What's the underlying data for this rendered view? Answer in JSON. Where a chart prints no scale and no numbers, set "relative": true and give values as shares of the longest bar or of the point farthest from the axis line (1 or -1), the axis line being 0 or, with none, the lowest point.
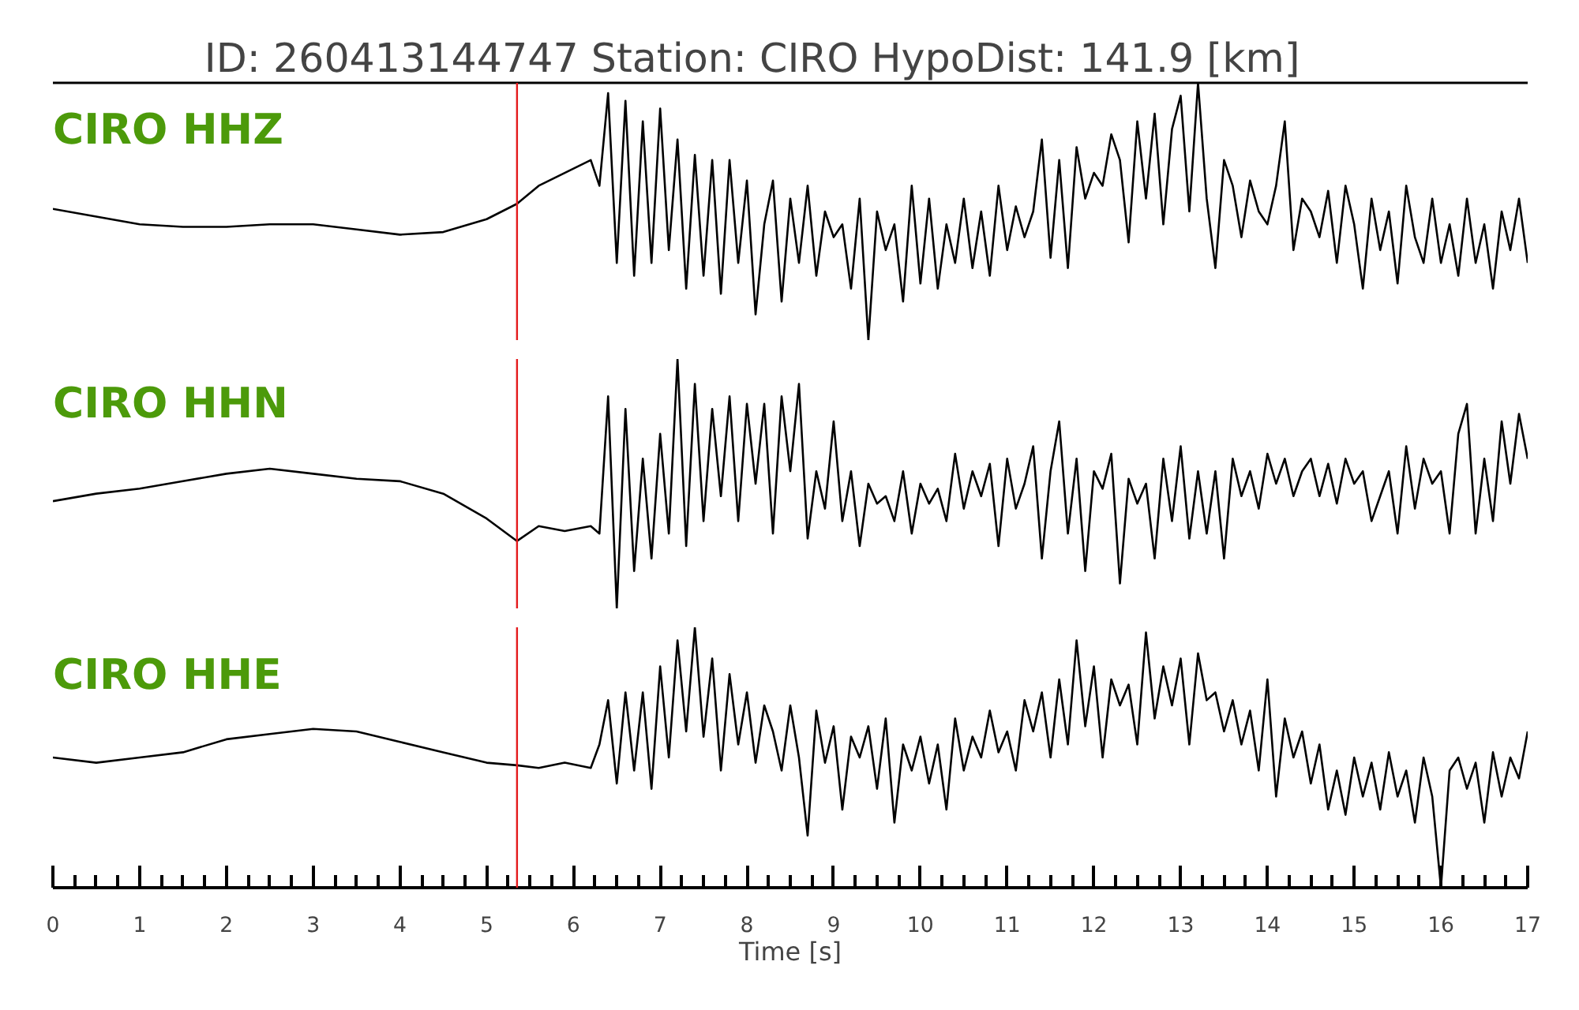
{
  "chart_data": [
    {
      "type": "line",
      "title": "ID: 260413144747   Station: CIRO   HypoDist:   141.9 [km]",
      "relative": true,
      "xlim": [
        0,
        17
      ],
      "tick_labels": false,
      "x": [
        0,
        0.5,
        1,
        1.5,
        2,
        2.5,
        3,
        3.5,
        4,
        4.5,
        5,
        5.35,
        5.6,
        5.9,
        6.2,
        6.3,
        6.4,
        6.5,
        6.6,
        6.7,
        6.8,
        6.9,
        7.0,
        7.1,
        7.2,
        7.3,
        7.4,
        7.5,
        7.6,
        7.7,
        7.8,
        7.9,
        8.0,
        8.1,
        8.2,
        8.3,
        8.4,
        8.5,
        8.6,
        8.7,
        8.8,
        8.9,
        9.0,
        9.1,
        9.2,
        9.3,
        9.4,
        9.5,
        9.6,
        9.7,
        9.8,
        9.9,
        10.0,
        10.1,
        10.2,
        10.3,
        10.4,
        10.5,
        10.6,
        10.7,
        10.8,
        10.9,
        11.0,
        11.1,
        11.2,
        11.3,
        11.4,
        11.5,
        11.6,
        11.7,
        11.8,
        11.9,
        12.0,
        12.1,
        12.2,
        12.3,
        12.4,
        12.5,
        12.6,
        12.7,
        12.8,
        12.9,
        13.0,
        13.1,
        13.2,
        13.3,
        13.4,
        13.5,
        13.6,
        13.7,
        13.8,
        13.9,
        14.0,
        14.1,
        14.2,
        14.3,
        14.4,
        14.5,
        14.6,
        14.7,
        14.8,
        14.9,
        15.0,
        15.1,
        15.2,
        15.3,
        15.4,
        15.5,
        15.6,
        15.7,
        15.8,
        15.9,
        16.0,
        16.1,
        16.2,
        16.3,
        16.4,
        16.5,
        16.6,
        16.7,
        16.8,
        16.9,
        17.0
      ],
      "ref_lines": [
        {
          "axis": "x",
          "value": 5.35,
          "color": "#e41a1c"
        }
      ],
      "series": [
        {
          "name": "CIRO HHZ",
          "color": "#000000",
          "values": [
            0.51,
            0.48,
            0.45,
            0.44,
            0.44,
            0.45,
            0.45,
            0.43,
            0.41,
            0.42,
            0.47,
            0.53,
            0.6,
            0.65,
            0.7,
            0.6,
            0.96,
            0.3,
            0.93,
            0.25,
            0.85,
            0.3,
            0.9,
            0.35,
            0.78,
            0.2,
            0.72,
            0.25,
            0.7,
            0.18,
            0.7,
            0.3,
            0.62,
            0.1,
            0.45,
            0.62,
            0.15,
            0.55,
            0.3,
            0.6,
            0.25,
            0.5,
            0.4,
            0.45,
            0.2,
            0.55,
            0.0,
            0.5,
            0.35,
            0.45,
            0.15,
            0.6,
            0.22,
            0.55,
            0.2,
            0.45,
            0.3,
            0.55,
            0.28,
            0.5,
            0.25,
            0.6,
            0.35,
            0.52,
            0.4,
            0.5,
            0.78,
            0.32,
            0.7,
            0.28,
            0.75,
            0.55,
            0.65,
            0.6,
            0.8,
            0.7,
            0.38,
            0.85,
            0.55,
            0.88,
            0.45,
            0.82,
            0.95,
            0.5,
            1.0,
            0.55,
            0.28,
            0.7,
            0.6,
            0.4,
            0.62,
            0.5,
            0.45,
            0.6,
            0.85,
            0.35,
            0.55,
            0.5,
            0.4,
            0.58,
            0.3,
            0.6,
            0.45,
            0.2,
            0.55,
            0.35,
            0.5,
            0.22,
            0.6,
            0.4,
            0.3,
            0.55,
            0.3,
            0.45,
            0.25,
            0.55,
            0.3,
            0.45,
            0.2,
            0.5,
            0.35,
            0.55,
            0.3
          ]
        }
      ]
    },
    {
      "type": "line",
      "relative": true,
      "xlim": [
        0,
        17
      ],
      "tick_labels": false,
      "x": [
        0,
        0.5,
        1,
        1.5,
        2,
        2.5,
        3,
        3.5,
        4,
        4.5,
        5,
        5.35,
        5.6,
        5.9,
        6.2,
        6.3,
        6.4,
        6.5,
        6.6,
        6.7,
        6.8,
        6.9,
        7.0,
        7.1,
        7.2,
        7.3,
        7.4,
        7.5,
        7.6,
        7.7,
        7.8,
        7.9,
        8.0,
        8.1,
        8.2,
        8.3,
        8.4,
        8.5,
        8.6,
        8.7,
        8.8,
        8.9,
        9.0,
        9.1,
        9.2,
        9.3,
        9.4,
        9.5,
        9.6,
        9.7,
        9.8,
        9.9,
        10.0,
        10.1,
        10.2,
        10.3,
        10.4,
        10.5,
        10.6,
        10.7,
        10.8,
        10.9,
        11.0,
        11.1,
        11.2,
        11.3,
        11.4,
        11.5,
        11.6,
        11.7,
        11.8,
        11.9,
        12.0,
        12.1,
        12.2,
        12.3,
        12.4,
        12.5,
        12.6,
        12.7,
        12.8,
        12.9,
        13.0,
        13.1,
        13.2,
        13.3,
        13.4,
        13.5,
        13.6,
        13.7,
        13.8,
        13.9,
        14.0,
        14.1,
        14.2,
        14.3,
        14.4,
        14.5,
        14.6,
        14.7,
        14.8,
        14.9,
        15.0,
        15.1,
        15.2,
        15.3,
        15.4,
        15.5,
        15.6,
        15.7,
        15.8,
        15.9,
        16.0,
        16.1,
        16.2,
        16.3,
        16.4,
        16.5,
        16.6,
        16.7,
        16.8,
        16.9,
        17.0
      ],
      "ref_lines": [
        {
          "axis": "x",
          "value": 5.35,
          "color": "#e41a1c"
        }
      ],
      "series": [
        {
          "name": "CIRO HHN",
          "color": "#000000",
          "values": [
            0.43,
            0.46,
            0.48,
            0.51,
            0.54,
            0.56,
            0.54,
            0.52,
            0.51,
            0.46,
            0.36,
            0.27,
            0.33,
            0.31,
            0.33,
            0.3,
            0.85,
            0.0,
            0.8,
            0.15,
            0.6,
            0.2,
            0.7,
            0.3,
            1.0,
            0.25,
            0.9,
            0.35,
            0.8,
            0.45,
            0.85,
            0.35,
            0.82,
            0.5,
            0.82,
            0.3,
            0.85,
            0.55,
            0.9,
            0.28,
            0.55,
            0.4,
            0.75,
            0.35,
            0.55,
            0.25,
            0.5,
            0.42,
            0.45,
            0.35,
            0.55,
            0.3,
            0.5,
            0.42,
            0.48,
            0.35,
            0.62,
            0.4,
            0.55,
            0.45,
            0.58,
            0.25,
            0.6,
            0.4,
            0.5,
            0.65,
            0.2,
            0.55,
            0.75,
            0.3,
            0.6,
            0.15,
            0.55,
            0.48,
            0.62,
            0.1,
            0.52,
            0.42,
            0.5,
            0.2,
            0.6,
            0.35,
            0.65,
            0.28,
            0.55,
            0.3,
            0.55,
            0.2,
            0.6,
            0.45,
            0.55,
            0.4,
            0.62,
            0.5,
            0.6,
            0.45,
            0.55,
            0.6,
            0.45,
            0.58,
            0.42,
            0.6,
            0.5,
            0.55,
            0.35,
            0.45,
            0.55,
            0.3,
            0.65,
            0.4,
            0.6,
            0.5,
            0.55,
            0.3,
            0.7,
            0.82,
            0.3,
            0.6,
            0.35,
            0.75,
            0.5,
            0.78,
            0.6
          ]
        }
      ]
    },
    {
      "type": "line",
      "relative": true,
      "xlim": [
        0,
        17
      ],
      "xlabel": "Time [s]",
      "xticks": [
        0,
        {
          "value": 0.25,
          "label": null
        },
        {
          "value": 0.5,
          "label": null
        },
        {
          "value": 0.75,
          "label": null
        },
        1,
        {
          "value": 1.25,
          "label": null
        },
        {
          "value": 1.5,
          "label": null
        },
        {
          "value": 1.75,
          "label": null
        },
        2,
        {
          "value": 2.25,
          "label": null
        },
        {
          "value": 2.5,
          "label": null
        },
        {
          "value": 2.75,
          "label": null
        },
        3,
        {
          "value": 3.25,
          "label": null
        },
        {
          "value": 3.5,
          "label": null
        },
        {
          "value": 3.75,
          "label": null
        },
        4,
        {
          "value": 4.25,
          "label": null
        },
        {
          "value": 4.5,
          "label": null
        },
        {
          "value": 4.75,
          "label": null
        },
        5,
        {
          "value": 5.25,
          "label": null
        },
        {
          "value": 5.5,
          "label": null
        },
        {
          "value": 5.75,
          "label": null
        },
        6,
        {
          "value": 6.25,
          "label": null
        },
        {
          "value": 6.5,
          "label": null
        },
        {
          "value": 6.75,
          "label": null
        },
        7,
        {
          "value": 7.25,
          "label": null
        },
        {
          "value": 7.5,
          "label": null
        },
        {
          "value": 7.75,
          "label": null
        },
        8,
        {
          "value": 8.25,
          "label": null
        },
        {
          "value": 8.5,
          "label": null
        },
        {
          "value": 8.75,
          "label": null
        },
        9,
        {
          "value": 9.25,
          "label": null
        },
        {
          "value": 9.5,
          "label": null
        },
        {
          "value": 9.75,
          "label": null
        },
        10,
        {
          "value": 10.25,
          "label": null
        },
        {
          "value": 10.5,
          "label": null
        },
        {
          "value": 10.75,
          "label": null
        },
        11,
        {
          "value": 11.25,
          "label": null
        },
        {
          "value": 11.5,
          "label": null
        },
        {
          "value": 11.75,
          "label": null
        },
        12,
        {
          "value": 12.25,
          "label": null
        },
        {
          "value": 12.5,
          "label": null
        },
        {
          "value": 12.75,
          "label": null
        },
        13,
        {
          "value": 13.25,
          "label": null
        },
        {
          "value": 13.5,
          "label": null
        },
        {
          "value": 13.75,
          "label": null
        },
        14,
        {
          "value": 14.25,
          "label": null
        },
        {
          "value": 14.5,
          "label": null
        },
        {
          "value": 14.75,
          "label": null
        },
        15,
        {
          "value": 15.25,
          "label": null
        },
        {
          "value": 15.5,
          "label": null
        },
        {
          "value": 15.75,
          "label": null
        },
        16,
        {
          "value": 16.25,
          "label": null
        },
        {
          "value": 16.5,
          "label": null
        },
        {
          "value": 16.75,
          "label": null
        },
        17
      ],
      "x": [
        0,
        0.5,
        1,
        1.5,
        2,
        2.5,
        3,
        3.5,
        4,
        4.5,
        5,
        5.35,
        5.6,
        5.9,
        6.2,
        6.3,
        6.4,
        6.5,
        6.6,
        6.7,
        6.8,
        6.9,
        7.0,
        7.1,
        7.2,
        7.3,
        7.4,
        7.5,
        7.6,
        7.7,
        7.8,
        7.9,
        8.0,
        8.1,
        8.2,
        8.3,
        8.4,
        8.5,
        8.6,
        8.7,
        8.8,
        8.9,
        9.0,
        9.1,
        9.2,
        9.3,
        9.4,
        9.5,
        9.6,
        9.7,
        9.8,
        9.9,
        10.0,
        10.1,
        10.2,
        10.3,
        10.4,
        10.5,
        10.6,
        10.7,
        10.8,
        10.9,
        11.0,
        11.1,
        11.2,
        11.3,
        11.4,
        11.5,
        11.6,
        11.7,
        11.8,
        11.9,
        12.0,
        12.1,
        12.2,
        12.3,
        12.4,
        12.5,
        12.6,
        12.7,
        12.8,
        12.9,
        13.0,
        13.1,
        13.2,
        13.3,
        13.4,
        13.5,
        13.6,
        13.7,
        13.8,
        13.9,
        14.0,
        14.1,
        14.2,
        14.3,
        14.4,
        14.5,
        14.6,
        14.7,
        14.8,
        14.9,
        15.0,
        15.1,
        15.2,
        15.3,
        15.4,
        15.5,
        15.6,
        15.7,
        15.8,
        15.9,
        16.0,
        16.1,
        16.2,
        16.3,
        16.4,
        16.5,
        16.6,
        16.7,
        16.8,
        16.9,
        17.0
      ],
      "ref_lines": [
        {
          "axis": "x",
          "value": 5.35,
          "color": "#e41a1c"
        }
      ],
      "series": [
        {
          "name": "CIRO HHE",
          "color": "#000000",
          "values": [
            0.5,
            0.48,
            0.5,
            0.52,
            0.57,
            0.59,
            0.61,
            0.6,
            0.56,
            0.52,
            0.48,
            0.47,
            0.46,
            0.48,
            0.46,
            0.55,
            0.72,
            0.4,
            0.75,
            0.45,
            0.75,
            0.38,
            0.85,
            0.5,
            0.95,
            0.6,
            1.0,
            0.58,
            0.88,
            0.45,
            0.82,
            0.55,
            0.75,
            0.48,
            0.7,
            0.6,
            0.45,
            0.7,
            0.5,
            0.2,
            0.68,
            0.48,
            0.62,
            0.3,
            0.58,
            0.5,
            0.62,
            0.38,
            0.65,
            0.25,
            0.55,
            0.45,
            0.58,
            0.4,
            0.55,
            0.3,
            0.65,
            0.45,
            0.58,
            0.5,
            0.68,
            0.52,
            0.6,
            0.45,
            0.72,
            0.6,
            0.75,
            0.5,
            0.8,
            0.55,
            0.95,
            0.62,
            0.85,
            0.5,
            0.8,
            0.7,
            0.78,
            0.55,
            0.98,
            0.65,
            0.85,
            0.7,
            0.88,
            0.55,
            0.9,
            0.72,
            0.75,
            0.6,
            0.72,
            0.55,
            0.68,
            0.45,
            0.8,
            0.35,
            0.65,
            0.5,
            0.6,
            0.4,
            0.55,
            0.3,
            0.45,
            0.28,
            0.5,
            0.35,
            0.48,
            0.3,
            0.52,
            0.35,
            0.45,
            0.25,
            0.5,
            0.35,
            0.0,
            0.45,
            0.5,
            0.38,
            0.48,
            0.25,
            0.52,
            0.35,
            0.5,
            0.42,
            0.6
          ]
        }
      ]
    }
  ]
}
